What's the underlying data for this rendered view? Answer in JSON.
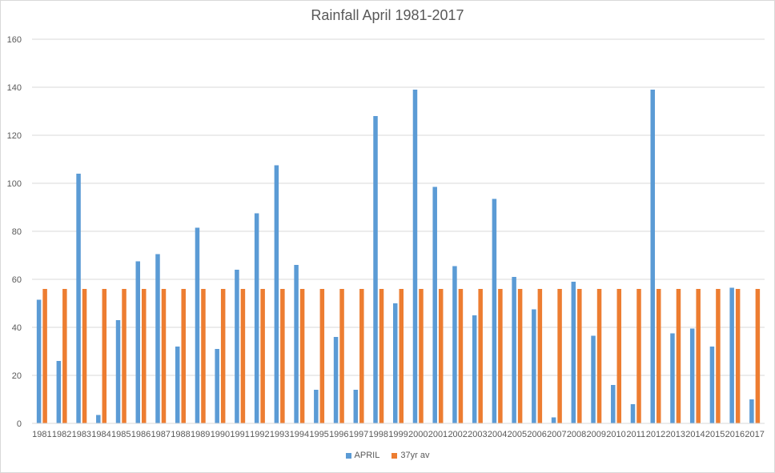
{
  "chart_data": {
    "type": "bar",
    "title": "Rainfall April 1981-2017",
    "xlabel": "",
    "ylabel": "",
    "ylim": [
      0,
      160
    ],
    "yticks": [
      0,
      20,
      40,
      60,
      80,
      100,
      120,
      140,
      160
    ],
    "grid": true,
    "legend_position": "bottom",
    "categories": [
      "1981",
      "1982",
      "1983",
      "1984",
      "1985",
      "1986",
      "1987",
      "1988",
      "1989",
      "1990",
      "1991",
      "1992",
      "1993",
      "1994",
      "1995",
      "1996",
      "1997",
      "1998",
      "1999",
      "2000",
      "2001",
      "2002",
      "2003",
      "2004",
      "2005",
      "2006",
      "2007",
      "2008",
      "2009",
      "2010",
      "2011",
      "2012",
      "2013",
      "2014",
      "2015",
      "2016",
      "2017"
    ],
    "series": [
      {
        "name": "APRIL",
        "color": "#5b9bd5",
        "values": [
          51.5,
          26,
          104,
          3.5,
          43,
          67.5,
          70.5,
          32,
          81.5,
          31,
          64,
          87.5,
          107.5,
          66,
          14,
          36,
          14,
          128,
          50,
          139,
          98.5,
          65.5,
          45,
          93.5,
          61,
          47.5,
          2.5,
          59,
          36.5,
          16,
          8,
          139,
          37.5,
          39.5,
          32,
          56.5,
          10
        ]
      },
      {
        "name": "37yr av",
        "color": "#ed7d31",
        "values": [
          56,
          56,
          56,
          56,
          56,
          56,
          56,
          56,
          56,
          56,
          56,
          56,
          56,
          56,
          56,
          56,
          56,
          56,
          56,
          56,
          56,
          56,
          56,
          56,
          56,
          56,
          56,
          56,
          56,
          56,
          56,
          56,
          56,
          56,
          56,
          56,
          56
        ]
      }
    ]
  }
}
